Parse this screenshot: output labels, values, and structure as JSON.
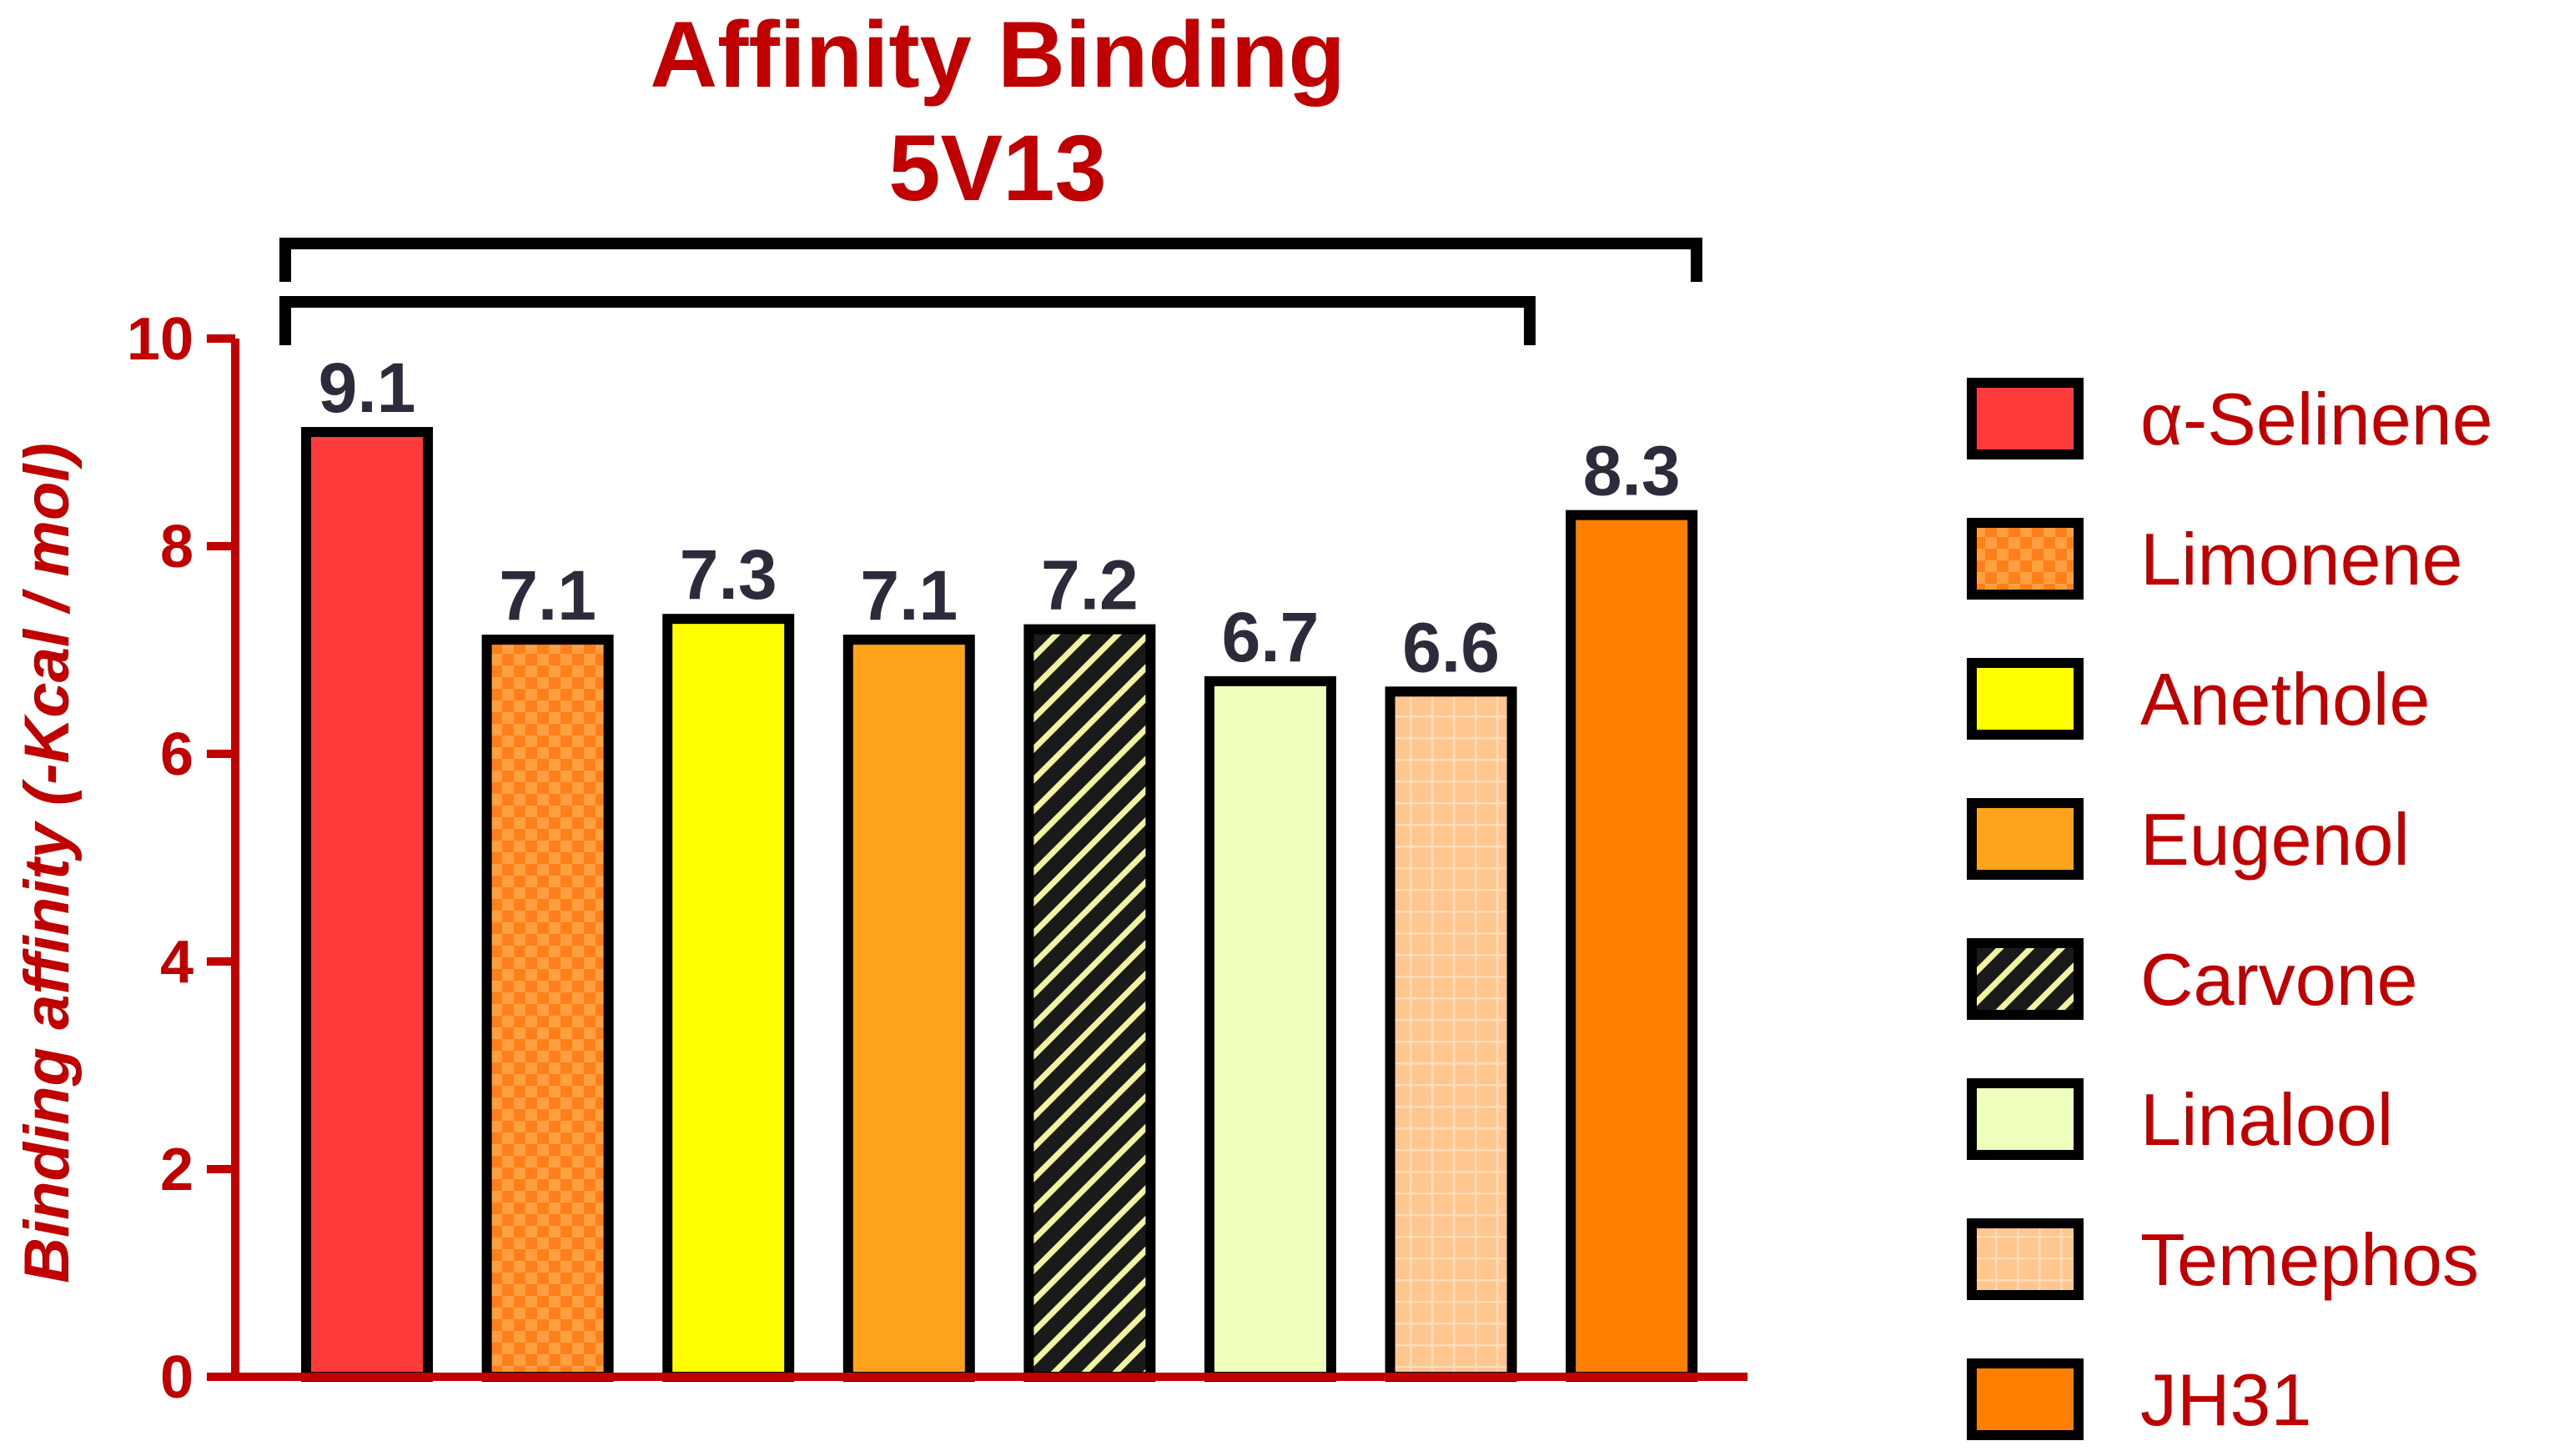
{
  "chart_data": {
    "type": "bar",
    "title": "Affinity Binding",
    "subtitle": "5V13",
    "ylabel": "Binding affinity (-Kcal / mol)",
    "xlabel": "",
    "ylim": [
      0,
      10
    ],
    "yticks": [
      "0",
      "2",
      "4",
      "6",
      "8",
      "10"
    ],
    "grid": false,
    "legend_position": "right",
    "categories": [
      "α-Selinene",
      "Limonene",
      "Anethole",
      "Eugenol",
      "Carvone",
      "Linalool",
      "Temephos",
      "JH31"
    ],
    "values": [
      9.1,
      7.1,
      7.3,
      7.1,
      7.2,
      6.7,
      6.6,
      8.3
    ],
    "value_labels": [
      "9.1",
      "7.1",
      "7.3",
      "7.1",
      "7.2",
      "6.7",
      "6.6",
      "8.3"
    ],
    "bar_colors": [
      "#ff3b3b",
      "#ff7f1a",
      "#ffff00",
      "#ffa31a",
      "#1a1a1a",
      "#eeffbb",
      "#ffc690",
      "#ff8000"
    ],
    "bar_patterns": [
      "solid",
      "checker",
      "solid",
      "solid",
      "hatch",
      "solid",
      "grid",
      "solid"
    ],
    "colors": {
      "text": "#c00000",
      "value_labels": "#2b2b3b",
      "axis": "#c00000",
      "bar_border": "#000000"
    }
  }
}
